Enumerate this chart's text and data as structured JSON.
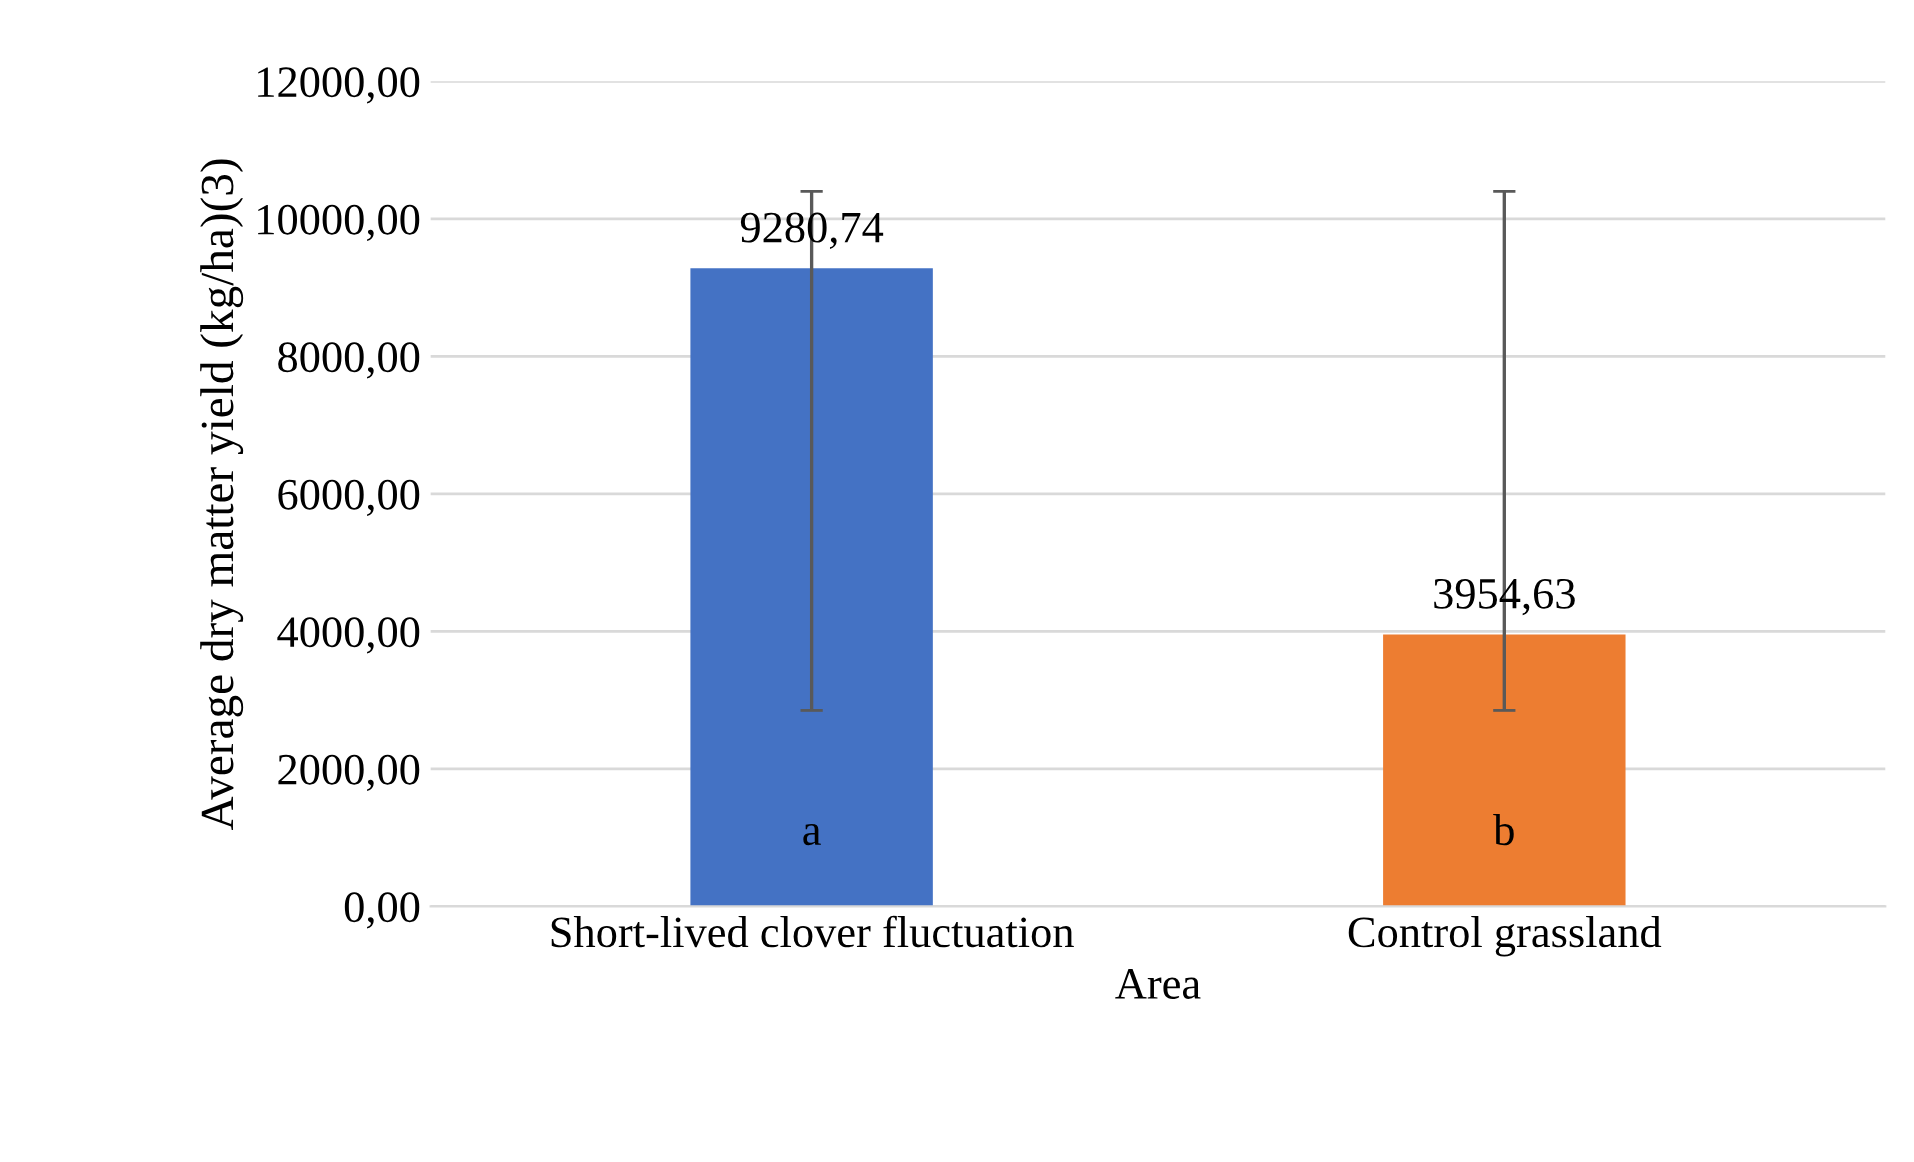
{
  "chart_data": {
    "type": "bar",
    "xlabel": "Area",
    "ylabel": "Average dry matter yield (kg/ha)(3)",
    "categories": [
      "Short-lived clover fluctuation",
      "Control grassland"
    ],
    "values": [
      9280.74,
      3954.63
    ],
    "colors": [
      "#4472c4",
      "#ed7d31"
    ],
    "value_labels": [
      "9280,74",
      "3954,63"
    ],
    "errors": [
      [
        2850,
        10400
      ],
      [
        2850,
        10400
      ]
    ],
    "annotations": [
      "a",
      "b"
    ],
    "ylim": [
      0,
      12000
    ],
    "yticks": [
      {
        "value": 0,
        "label": "0,00"
      },
      {
        "value": 2000,
        "label": "2000,00"
      },
      {
        "value": 4000,
        "label": "4000,00"
      },
      {
        "value": 6000,
        "label": "6000,00"
      },
      {
        "value": 8000,
        "label": "8000,00"
      },
      {
        "value": 10000,
        "label": "10000,00"
      },
      {
        "value": 12000,
        "label": "12000,00"
      }
    ],
    "grid": "y"
  }
}
